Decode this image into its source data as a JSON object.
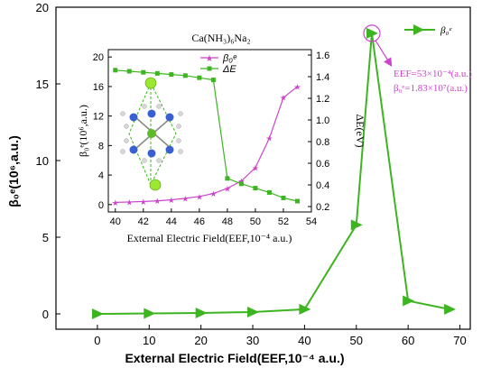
{
  "chart_data": [
    {
      "type": "line",
      "title": "",
      "xlabel": "External Electric Field(EEF,10⁻⁴ a.u.)",
      "ylabel": "β₀ᵉ(10⁶,a.u.)",
      "xlim": [
        -8,
        72
      ],
      "ylim": [
        -1,
        20
      ],
      "xticks": [
        0,
        10,
        20,
        30,
        40,
        50,
        60,
        70
      ],
      "yticks": [
        0,
        5,
        10,
        15,
        20
      ],
      "legend_position": "top-right",
      "series": [
        {
          "name": "β₀ᵉ",
          "color": "#3cb521",
          "x": [
            0,
            10,
            20,
            30,
            40,
            50,
            53,
            60,
            68
          ],
          "values": [
            0.0,
            0.03,
            0.06,
            0.12,
            0.3,
            5.8,
            18.3,
            0.85,
            0.3
          ]
        }
      ],
      "annotation": {
        "point": [
          53,
          18.3
        ],
        "line1": "EEF=53×10⁻⁴(a.u.)",
        "line2": "β₀ᵉ=1.83×10⁷(a.u.)"
      }
    },
    {
      "type": "line",
      "title": "Ca(NH₃)₆Na₂",
      "xlabel": "External Electric Field(EEF,10⁻⁴ a.u.)",
      "ylabel_left": "β₀ᵉ(10⁶,a.u.)",
      "ylabel_right": "ΔE(eV)",
      "xlim": [
        39.5,
        54
      ],
      "ylim_left": [
        -1,
        21
      ],
      "ylim_right": [
        0.15,
        1.65
      ],
      "xticks": [
        40,
        42,
        44,
        46,
        48,
        50,
        52,
        54
      ],
      "yticks_left": [
        0,
        4,
        8,
        12,
        16,
        20
      ],
      "yticks_right": [
        0.2,
        0.4,
        0.6,
        0.8,
        1.0,
        1.2,
        1.4,
        1.6
      ],
      "legend_position": "top-right",
      "series": [
        {
          "name": "β₀ᵉ",
          "axis": "left",
          "color": "#cc44cc",
          "x": [
            40,
            41,
            42,
            43,
            44,
            45,
            46,
            47,
            48,
            49,
            50,
            51,
            52,
            53
          ],
          "values": [
            0.3,
            0.35,
            0.42,
            0.5,
            0.65,
            0.85,
            1.1,
            1.5,
            2.2,
            3.2,
            5.0,
            9.0,
            14.5,
            16.0
          ]
        },
        {
          "name": "ΔE",
          "axis": "right",
          "color": "#3cb521",
          "x": [
            40,
            41,
            42,
            43,
            44,
            45,
            46,
            47,
            48,
            49,
            50,
            51,
            52,
            53
          ],
          "values": [
            1.46,
            1.45,
            1.44,
            1.43,
            1.42,
            1.41,
            1.39,
            1.37,
            0.46,
            0.41,
            0.37,
            0.33,
            0.28,
            0.25
          ]
        }
      ]
    }
  ]
}
